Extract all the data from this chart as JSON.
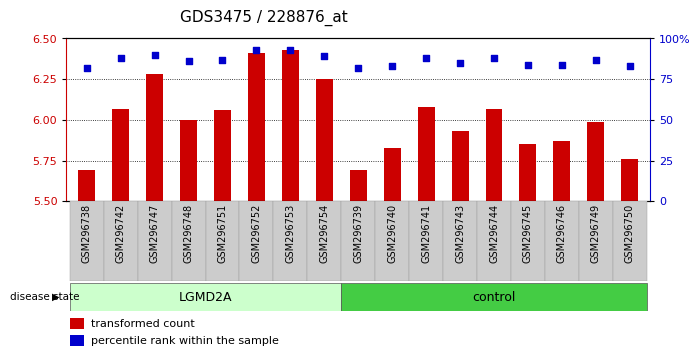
{
  "title": "GDS3475 / 228876_at",
  "samples": [
    "GSM296738",
    "GSM296742",
    "GSM296747",
    "GSM296748",
    "GSM296751",
    "GSM296752",
    "GSM296753",
    "GSM296754",
    "GSM296739",
    "GSM296740",
    "GSM296741",
    "GSM296743",
    "GSM296744",
    "GSM296745",
    "GSM296746",
    "GSM296749",
    "GSM296750"
  ],
  "bar_values": [
    5.69,
    6.07,
    6.28,
    6.0,
    6.06,
    6.41,
    6.43,
    6.25,
    5.69,
    5.83,
    6.08,
    5.93,
    6.07,
    5.85,
    5.87,
    5.99,
    5.76
  ],
  "percentile_values": [
    82,
    88,
    90,
    86,
    87,
    93,
    93,
    89,
    82,
    83,
    88,
    85,
    88,
    84,
    84,
    87,
    83
  ],
  "bar_color": "#cc0000",
  "dot_color": "#0000cc",
  "ylim_left": [
    5.5,
    6.5
  ],
  "ylim_right": [
    0,
    100
  ],
  "yticks_left": [
    5.5,
    5.75,
    6.0,
    6.25,
    6.5
  ],
  "yticks_right": [
    0,
    25,
    50,
    75,
    100
  ],
  "ytick_labels_right": [
    "0",
    "25",
    "50",
    "75",
    "100%"
  ],
  "grid_values": [
    5.75,
    6.0,
    6.25
  ],
  "lgmd2a_count": 8,
  "control_count": 9,
  "lgmd2a_color": "#ccffcc",
  "control_color": "#44cc44",
  "disease_state_label": "disease state",
  "lgmd2a_label": "LGMD2A",
  "control_label": "control",
  "legend_bar_label": "transformed count",
  "legend_dot_label": "percentile rank within the sample",
  "bar_bottom": 5.5,
  "title_fontsize": 11,
  "tick_label_fontsize": 7,
  "axis_color_left": "#cc0000",
  "axis_color_right": "#0000cc",
  "xtick_bg_color": "#cccccc"
}
